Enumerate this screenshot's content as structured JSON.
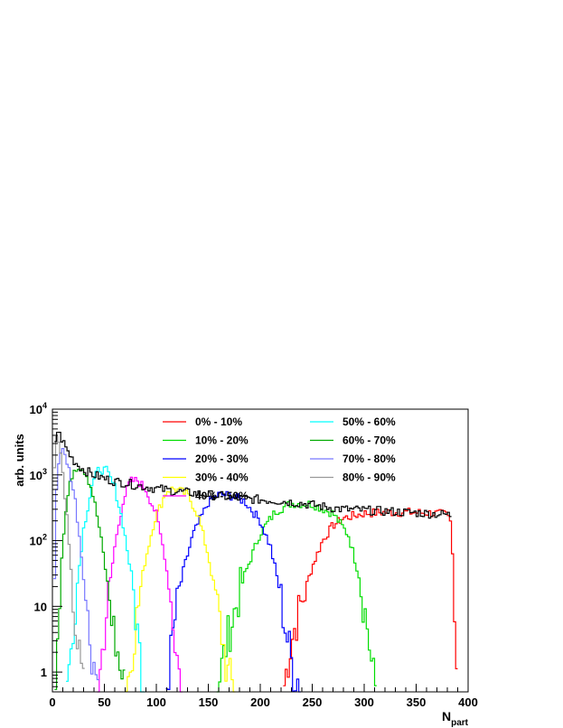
{
  "chart_data": {
    "type": "line",
    "title": "",
    "xlabel": {
      "main": "N",
      "sub": "part"
    },
    "ylabel": "arb. units",
    "xlim": [
      0,
      400
    ],
    "ylim": [
      0.5,
      10000
    ],
    "yscale": "log",
    "grid": false,
    "legend_position": "top",
    "x_ticks": [
      "0",
      "50",
      "100",
      "150",
      "200",
      "250",
      "300",
      "350",
      "400"
    ],
    "y_ticks": [
      {
        "value": 1,
        "base": "1",
        "exp": ""
      },
      {
        "value": 10,
        "base": "10",
        "exp": ""
      },
      {
        "value": 100,
        "base": "10",
        "exp": "2"
      },
      {
        "value": 1000,
        "base": "10",
        "exp": "3"
      },
      {
        "value": 10000,
        "base": "10",
        "exp": "4"
      }
    ],
    "total": {
      "color": "#000000",
      "x": [
        2,
        5,
        8,
        12,
        16,
        20,
        25,
        30,
        40,
        50,
        60,
        70,
        80,
        100,
        120,
        140,
        160,
        180,
        200,
        220,
        240,
        260,
        280,
        300,
        320,
        340,
        360,
        380,
        385
      ],
      "y": [
        2800,
        4600,
        3800,
        2800,
        2100,
        1700,
        1400,
        1200,
        1000,
        880,
        800,
        760,
        700,
        620,
        560,
        520,
        480,
        440,
        420,
        400,
        370,
        330,
        300,
        290,
        280,
        270,
        260,
        250,
        240
      ]
    },
    "series": [
      {
        "name": "0% - 10%",
        "color": "#ff0000",
        "x": [
          222,
          225,
          230,
          235,
          240,
          250,
          260,
          270,
          280,
          300,
          320,
          340,
          360,
          380,
          384,
          386,
          388,
          390,
          391
        ],
        "y": [
          0.5,
          1,
          3,
          6,
          12,
          40,
          100,
          170,
          220,
          260,
          270,
          270,
          265,
          250,
          180,
          30,
          2,
          1,
          0.5
        ]
      },
      {
        "name": "10% - 20%",
        "color": "#00dd00",
        "x": [
          158,
          162,
          168,
          175,
          185,
          200,
          215,
          230,
          250,
          270,
          285,
          295,
          303,
          308,
          312
        ],
        "y": [
          0.5,
          1,
          3,
          8,
          30,
          130,
          280,
          370,
          360,
          260,
          120,
          30,
          5,
          1,
          0.5
        ]
      },
      {
        "name": "20% - 30%",
        "color": "#0000ff",
        "x": [
          109,
          112,
          117,
          125,
          135,
          150,
          160,
          170,
          185,
          200,
          210,
          218,
          225,
          232,
          236,
          240
        ],
        "y": [
          0.5,
          1,
          5,
          30,
          120,
          380,
          500,
          490,
          400,
          200,
          80,
          20,
          4,
          1,
          0.8,
          0.5
        ]
      },
      {
        "name": "30% - 40%",
        "color": "#ffff00",
        "x": [
          70,
          74,
          80,
          88,
          98,
          110,
          118,
          130,
          140,
          150,
          158,
          164,
          168,
          172,
          176
        ],
        "y": [
          0.5,
          1,
          5,
          40,
          200,
          580,
          620,
          500,
          250,
          60,
          12,
          3,
          1,
          0.7,
          0.5
        ]
      },
      {
        "name": "40% - 50%",
        "color": "#ff00ff",
        "x": [
          43,
          46,
          52,
          60,
          68,
          75,
          82,
          90,
          100,
          108,
          114,
          118,
          122,
          126
        ],
        "y": [
          0.5,
          1,
          8,
          80,
          400,
          800,
          820,
          600,
          250,
          60,
          12,
          3,
          1,
          0.5
        ]
      },
      {
        "name": "50% - 60%",
        "color": "#00ffff",
        "x": [
          13,
          16,
          22,
          30,
          38,
          45,
          52,
          60,
          68,
          76,
          82,
          86,
          90
        ],
        "y": [
          0.5,
          1,
          12,
          150,
          700,
          1250,
          1150,
          650,
          180,
          30,
          4,
          1,
          0.5
        ]
      },
      {
        "name": "60% - 70%",
        "color": "#00aa00",
        "x": [
          2,
          4,
          8,
          14,
          20,
          26,
          32,
          38,
          44,
          50,
          56,
          62,
          66,
          70
        ],
        "y": [
          0.5,
          2,
          40,
          400,
          1200,
          1400,
          1100,
          600,
          200,
          50,
          10,
          2,
          1,
          0.5
        ]
      },
      {
        "name": "70% - 80%",
        "color": "#7777ff",
        "x": [
          1,
          2,
          4,
          7,
          10,
          14,
          18,
          22,
          26,
          30,
          34,
          38,
          42,
          46
        ],
        "y": [
          4,
          30,
          600,
          2400,
          2300,
          1600,
          900,
          400,
          120,
          30,
          6,
          2,
          1,
          0.5
        ]
      },
      {
        "name": "80% - 90%",
        "color": "#999999",
        "x": [
          1,
          2,
          4,
          6,
          8,
          10,
          13,
          16,
          19,
          22,
          25,
          28,
          31
        ],
        "y": [
          200,
          1500,
          3500,
          3200,
          2000,
          1000,
          350,
          80,
          20,
          5,
          2,
          1,
          0.5
        ]
      }
    ]
  }
}
